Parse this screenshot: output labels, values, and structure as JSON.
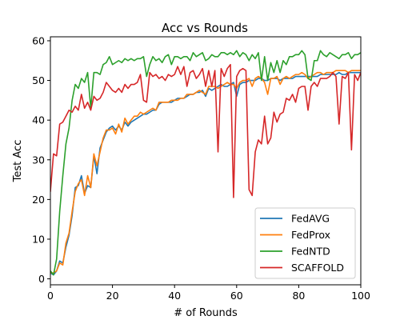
{
  "chart_data": {
    "type": "line",
    "title": "Acc vs Rounds",
    "xlabel": "# of Rounds",
    "ylabel": "Test Acc",
    "xlim": [
      0,
      100
    ],
    "ylim": [
      -1.5,
      61
    ],
    "xticks": [
      0,
      20,
      40,
      60,
      80,
      100
    ],
    "yticks": [
      0,
      10,
      20,
      30,
      40,
      50,
      60
    ],
    "grid": false,
    "legend_position": "lower-right",
    "series": [
      {
        "name": "FedAVG",
        "color": "#1f77b4",
        "values": [
          1.5,
          1.0,
          2.0,
          4.5,
          4.0,
          8.0,
          11.0,
          16.0,
          23.0,
          23.5,
          26.0,
          21.5,
          23.5,
          23.0,
          31.0,
          26.5,
          33.0,
          35.0,
          37.0,
          38.0,
          38.5,
          37.5,
          38.5,
          37.5,
          39.5,
          38.5,
          39.5,
          40.0,
          40.5,
          41.0,
          41.5,
          41.5,
          42.0,
          42.5,
          42.5,
          44.0,
          44.5,
          44.5,
          44.5,
          44.5,
          45.0,
          45.5,
          45.5,
          45.5,
          46.0,
          46.5,
          46.5,
          47.0,
          47.0,
          47.5,
          46.0,
          48.0,
          47.5,
          48.0,
          48.5,
          49.0,
          48.5,
          48.5,
          49.0,
          49.5,
          46.0,
          49.0,
          49.5,
          49.5,
          50.0,
          50.0,
          50.0,
          50.5,
          50.5,
          50.0,
          50.0,
          50.5,
          50.5,
          50.5,
          50.0,
          50.5,
          50.5,
          50.5,
          50.5,
          51.0,
          51.0,
          51.0,
          51.0,
          51.0,
          51.0,
          51.0,
          51.0,
          51.5,
          51.5,
          51.5,
          51.5,
          51.5,
          51.5,
          52.0,
          51.5,
          51.5,
          52.0,
          52.0,
          52.0,
          52.0,
          52.0
        ]
      },
      {
        "name": "FedProx",
        "color": "#ff7f0e",
        "values": [
          1.5,
          1.5,
          2.0,
          4.0,
          3.5,
          9.0,
          11.5,
          17.0,
          22.0,
          24.0,
          25.0,
          21.0,
          26.0,
          23.0,
          31.5,
          28.5,
          32.0,
          35.5,
          37.5,
          37.5,
          38.0,
          36.5,
          39.0,
          37.0,
          40.5,
          39.0,
          40.0,
          41.0,
          41.0,
          42.0,
          41.5,
          42.0,
          42.5,
          43.0,
          42.5,
          44.5,
          44.5,
          44.5,
          44.5,
          45.0,
          45.0,
          45.0,
          45.5,
          45.5,
          46.5,
          46.5,
          46.5,
          47.0,
          47.5,
          47.0,
          46.5,
          48.5,
          48.5,
          48.5,
          48.0,
          48.5,
          49.0,
          49.5,
          49.0,
          49.0,
          48.0,
          49.5,
          50.0,
          50.0,
          50.5,
          48.5,
          50.5,
          51.0,
          50.5,
          49.5,
          46.5,
          50.5,
          50.5,
          51.0,
          49.0,
          50.5,
          51.0,
          50.5,
          51.0,
          51.5,
          51.5,
          52.0,
          51.5,
          50.5,
          51.0,
          51.5,
          52.0,
          52.0,
          51.5,
          52.0,
          52.0,
          52.0,
          52.5,
          52.5,
          52.5,
          52.5,
          52.0,
          52.5,
          52.5,
          52.5,
          52.5
        ]
      },
      {
        "name": "FedNTD",
        "color": "#2ca02c",
        "values": [
          2.0,
          1.0,
          5.0,
          17.0,
          26.0,
          34.0,
          38.0,
          45.0,
          49.0,
          48.0,
          50.5,
          49.5,
          52.0,
          43.0,
          52.0,
          52.0,
          51.5,
          54.0,
          54.5,
          56.0,
          54.0,
          54.5,
          55.0,
          54.5,
          55.5,
          55.0,
          55.5,
          55.0,
          55.5,
          55.5,
          56.0,
          51.0,
          54.0,
          56.0,
          55.0,
          55.5,
          54.5,
          56.0,
          56.5,
          54.0,
          56.0,
          56.0,
          55.5,
          56.0,
          56.0,
          55.0,
          57.0,
          56.0,
          56.5,
          57.0,
          55.0,
          55.5,
          56.5,
          56.0,
          56.0,
          57.0,
          57.0,
          56.5,
          57.0,
          56.5,
          57.5,
          56.0,
          57.0,
          56.5,
          55.0,
          56.5,
          55.5,
          57.0,
          50.0,
          56.0,
          50.0,
          54.5,
          52.0,
          55.0,
          52.0,
          55.0,
          54.0,
          56.0,
          56.0,
          56.5,
          56.5,
          57.5,
          56.5,
          50.5,
          50.0,
          55.0,
          55.0,
          57.5,
          56.5,
          56.0,
          57.0,
          56.5,
          56.0,
          55.5,
          56.5,
          56.5,
          57.0,
          55.5,
          56.5,
          56.5,
          57.0
        ]
      },
      {
        "name": "SCAFFOLD",
        "color": "#d62728",
        "values": [
          22.0,
          31.5,
          31.0,
          39.0,
          39.5,
          41.0,
          42.5,
          42.0,
          43.5,
          42.5,
          46.5,
          43.0,
          44.5,
          42.5,
          46.0,
          45.0,
          45.5,
          47.0,
          49.5,
          48.5,
          47.5,
          47.0,
          48.0,
          47.0,
          49.0,
          48.0,
          49.0,
          49.0,
          49.5,
          51.5,
          45.0,
          44.5,
          52.0,
          51.0,
          51.5,
          50.5,
          51.0,
          50.0,
          51.5,
          51.0,
          51.5,
          53.5,
          51.5,
          53.5,
          48.5,
          52.0,
          52.5,
          50.5,
          51.5,
          53.0,
          48.5,
          52.5,
          48.5,
          52.5,
          32.0,
          53.0,
          51.0,
          53.0,
          54.0,
          20.5,
          51.0,
          52.5,
          53.0,
          52.5,
          22.5,
          21.0,
          32.0,
          35.0,
          34.0,
          41.0,
          34.0,
          35.5,
          42.0,
          39.5,
          41.5,
          42.0,
          45.5,
          45.0,
          46.5,
          44.5,
          48.0,
          48.5,
          48.5,
          42.5,
          48.5,
          49.5,
          48.5,
          50.5,
          50.5,
          50.5,
          51.0,
          52.0,
          51.0,
          39.0,
          51.0,
          50.5,
          52.0,
          32.5,
          51.5,
          50.0,
          52.0
        ]
      }
    ]
  }
}
